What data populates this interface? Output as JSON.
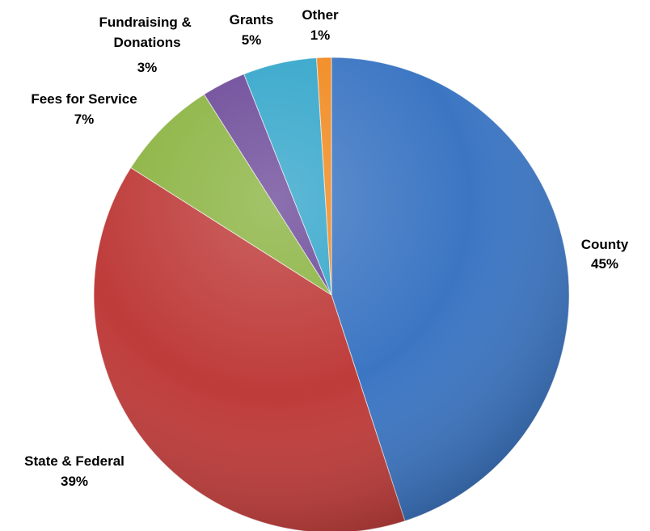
{
  "chart_data": {
    "type": "pie",
    "slices": [
      {
        "name": "County",
        "value": 45,
        "label": "45%",
        "color": "#3C76C3"
      },
      {
        "name": "State & Federal",
        "value": 39,
        "label": "39%",
        "color": "#BE3C3A"
      },
      {
        "name": "Fees for Service",
        "value": 7,
        "label": "7%",
        "color": "#8CB443"
      },
      {
        "name": "Fundraising & Donations",
        "value": 3,
        "label": "3%",
        "color": "#6E4C9A"
      },
      {
        "name": "Grants",
        "value": 5,
        "label": "5%",
        "color": "#36A7CB"
      },
      {
        "name": "Other",
        "value": 1,
        "label": "1%",
        "color": "#F18B22"
      }
    ]
  }
}
